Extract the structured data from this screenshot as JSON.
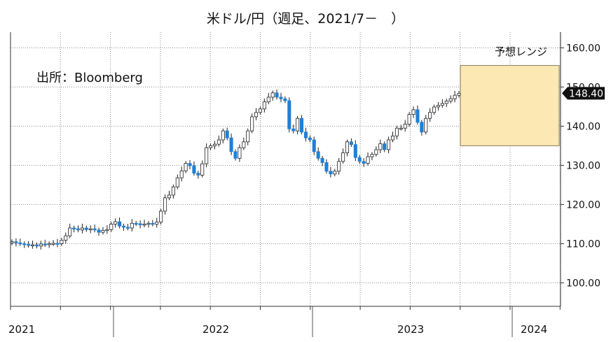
{
  "chart_data": {
    "type": "candlestick",
    "title": "米ドル/円（週足、2021/7－　）",
    "source_note": "出所：Bloomberg",
    "ylim": [
      94,
      164
    ],
    "y_ticks": [
      100,
      110,
      120,
      130,
      140,
      150,
      160
    ],
    "y_tick_labels": [
      "100.00",
      "110.00",
      "120.00",
      "130.00",
      "140.00",
      "150.00",
      "160.00"
    ],
    "x_year_labels": [
      "2021",
      "2022",
      "2023",
      "2024"
    ],
    "last_price": 148.4,
    "last_price_label": "148.40",
    "forecast_range": {
      "label": "予想レンジ",
      "low": 135.0,
      "high": 155.5
    },
    "colors": {
      "up": "#ffffff",
      "down": "#1f7fd6",
      "range_fill": "#fbe8b2",
      "range_border": "#8a7a55",
      "grid": "#888888"
    },
    "weekly_closes": [
      110.5,
      110.2,
      110.0,
      109.8,
      109.6,
      109.7,
      109.4,
      109.9,
      109.8,
      110.0,
      110.1,
      110.0,
      110.9,
      112.0,
      114.0,
      113.8,
      113.5,
      114.0,
      113.6,
      113.8,
      113.5,
      112.9,
      113.4,
      113.6,
      115.0,
      115.6,
      114.5,
      114.2,
      114.0,
      115.2,
      115.1,
      114.8,
      115.0,
      115.2,
      115.0,
      115.5,
      118.3,
      121.7,
      122.4,
      124.5,
      126.8,
      128.6,
      130.5,
      129.9,
      128.0,
      127.5,
      130.4,
      134.5,
      135.0,
      135.4,
      136.5,
      138.8,
      137.0,
      133.5,
      131.8,
      134.5,
      136.0,
      138.8,
      142.4,
      143.5,
      144.4,
      146.2,
      147.4,
      148.5,
      147.4,
      147.0,
      146.5,
      139.3,
      138.8,
      142.0,
      138.5,
      137.0,
      136.5,
      133.5,
      131.8,
      130.7,
      128.5,
      127.8,
      128.5,
      131.0,
      133.2,
      136.0,
      135.3,
      132.0,
      131.0,
      130.5,
      132.2,
      132.8,
      134.0,
      135.5,
      134.0,
      136.5,
      137.5,
      139.5,
      139.5,
      140.5,
      143.0,
      144.2,
      141.0,
      138.5,
      142.0,
      143.5,
      144.9,
      145.3,
      145.8,
      146.4,
      147.0,
      147.9,
      148.4
    ]
  }
}
